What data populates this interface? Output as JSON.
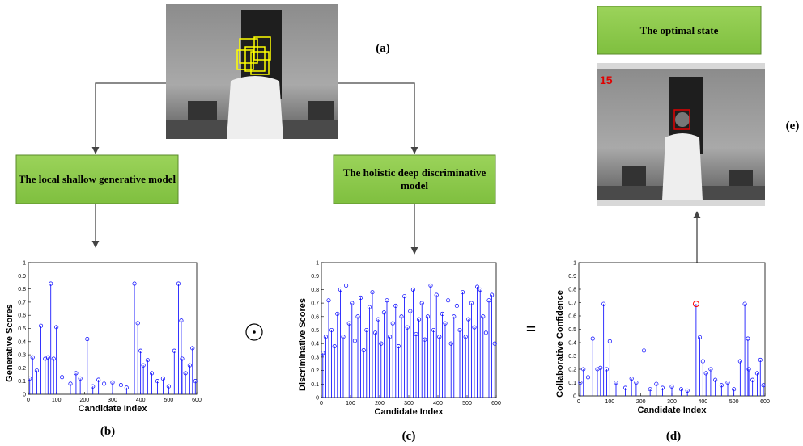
{
  "labels": {
    "a": "(a)",
    "b": "(b)",
    "c": "(c)",
    "d": "(d)",
    "e": "(e)",
    "equals": "=",
    "frame_number": "15"
  },
  "boxes": {
    "generative": "The local shallow generative model",
    "discriminative": "The holistic deep discriminative model",
    "optimal": "The optimal state"
  },
  "charts": [
    {
      "type": "stem",
      "ylabel": "Generative Scores",
      "xlabel": "Candidate Index",
      "color": "#0000ff",
      "xlim": [
        0,
        600
      ],
      "ylim": [
        0,
        1
      ],
      "xticks": [
        0,
        100,
        200,
        300,
        400,
        500,
        600
      ],
      "yticks": [
        0,
        0.1,
        0.2,
        0.3,
        0.4,
        0.5,
        0.6,
        0.7,
        0.8,
        0.9,
        1
      ],
      "x": [
        5,
        15,
        30,
        45,
        60,
        70,
        80,
        90,
        100,
        120,
        150,
        170,
        185,
        210,
        230,
        250,
        270,
        300,
        330,
        350,
        378,
        390,
        400,
        410,
        425,
        440,
        460,
        480,
        500,
        520,
        535,
        545,
        548,
        560,
        575,
        585,
        595
      ],
      "values": [
        0.12,
        0.28,
        0.18,
        0.52,
        0.27,
        0.28,
        0.84,
        0.27,
        0.51,
        0.13,
        0.08,
        0.16,
        0.12,
        0.42,
        0.06,
        0.11,
        0.08,
        0.09,
        0.07,
        0.05,
        0.84,
        0.54,
        0.33,
        0.22,
        0.26,
        0.16,
        0.1,
        0.12,
        0.06,
        0.33,
        0.84,
        0.56,
        0.27,
        0.16,
        0.22,
        0.35,
        0.1
      ]
    },
    {
      "type": "stem",
      "ylabel": "Discriminative Scores",
      "xlabel": "Candidate Index",
      "color": "#0000ff",
      "xlim": [
        0,
        600
      ],
      "ylim": [
        0,
        1
      ],
      "xticks": [
        0,
        100,
        200,
        300,
        400,
        500,
        600
      ],
      "yticks": [
        0,
        0.1,
        0.2,
        0.3,
        0.4,
        0.5,
        0.6,
        0.7,
        0.8,
        0.9,
        1
      ],
      "x": [
        5,
        15,
        25,
        35,
        45,
        55,
        65,
        75,
        85,
        95,
        105,
        115,
        125,
        135,
        145,
        155,
        165,
        175,
        185,
        195,
        205,
        215,
        225,
        235,
        245,
        255,
        265,
        275,
        285,
        295,
        305,
        315,
        325,
        335,
        345,
        355,
        365,
        375,
        385,
        395,
        405,
        415,
        425,
        435,
        445,
        455,
        465,
        475,
        485,
        495,
        505,
        515,
        525,
        535,
        545,
        555,
        565,
        575,
        585,
        595
      ],
      "values": [
        0.33,
        0.45,
        0.72,
        0.5,
        0.38,
        0.62,
        0.8,
        0.45,
        0.83,
        0.55,
        0.7,
        0.42,
        0.6,
        0.74,
        0.35,
        0.5,
        0.67,
        0.78,
        0.48,
        0.58,
        0.4,
        0.63,
        0.72,
        0.45,
        0.55,
        0.68,
        0.38,
        0.6,
        0.75,
        0.52,
        0.64,
        0.8,
        0.47,
        0.58,
        0.7,
        0.43,
        0.6,
        0.83,
        0.5,
        0.76,
        0.45,
        0.62,
        0.55,
        0.72,
        0.4,
        0.6,
        0.68,
        0.5,
        0.78,
        0.45,
        0.58,
        0.7,
        0.52,
        0.82,
        0.8,
        0.6,
        0.48,
        0.72,
        0.76,
        0.4
      ]
    },
    {
      "type": "stem",
      "ylabel": "Collaborative Confidence",
      "xlabel": "Candidate Index",
      "color": "#0000ff",
      "xlim": [
        0,
        600
      ],
      "ylim": [
        0,
        1
      ],
      "xticks": [
        0,
        100,
        200,
        300,
        400,
        500,
        600
      ],
      "yticks": [
        0,
        0.1,
        0.2,
        0.3,
        0.4,
        0.5,
        0.6,
        0.7,
        0.8,
        0.9,
        1
      ],
      "x": [
        5,
        15,
        30,
        45,
        60,
        70,
        80,
        90,
        100,
        120,
        150,
        170,
        185,
        210,
        230,
        250,
        270,
        300,
        330,
        350,
        378,
        390,
        400,
        410,
        425,
        440,
        460,
        480,
        500,
        520,
        535,
        545,
        548,
        560,
        575,
        585,
        595
      ],
      "values": [
        0.1,
        0.2,
        0.14,
        0.43,
        0.2,
        0.21,
        0.69,
        0.2,
        0.41,
        0.1,
        0.06,
        0.13,
        0.1,
        0.34,
        0.05,
        0.09,
        0.06,
        0.07,
        0.05,
        0.04,
        0.69,
        0.44,
        0.26,
        0.17,
        0.2,
        0.12,
        0.08,
        0.1,
        0.05,
        0.26,
        0.69,
        0.43,
        0.2,
        0.12,
        0.17,
        0.27,
        0.08
      ],
      "highlight": {
        "x": 378,
        "color": "#ff0000"
      }
    }
  ]
}
